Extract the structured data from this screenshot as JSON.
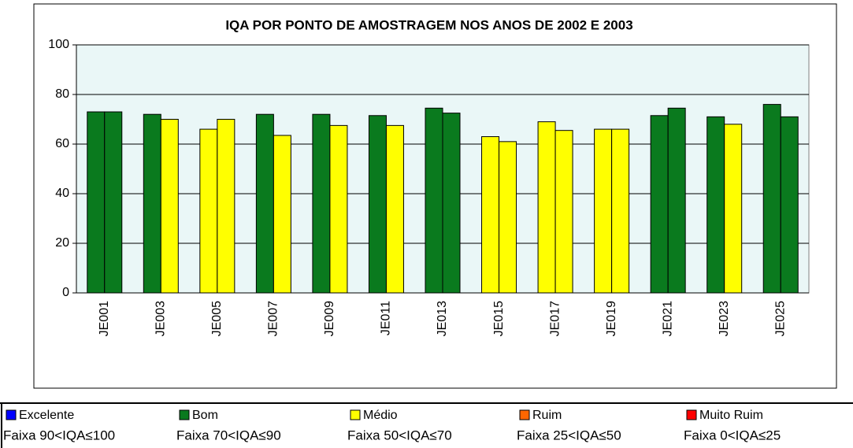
{
  "chart_data": {
    "type": "bar",
    "title": "IQA POR PONTO DE AMOSTRAGEM NOS ANOS DE 2002 E 2003",
    "categories": [
      "JE001",
      "JE003",
      "JE005",
      "JE007",
      "JE009",
      "JE011",
      "JE013",
      "JE015",
      "JE017",
      "JE019",
      "JE021",
      "JE023",
      "JE025"
    ],
    "series": [
      {
        "values": [
          73,
          72,
          66,
          72,
          72,
          71.5,
          74.5,
          63,
          69,
          66,
          71.5,
          71,
          76
        ],
        "colors": [
          "#0a7a1e",
          "#0a7a1e",
          "#ffff00",
          "#0a7a1e",
          "#0a7a1e",
          "#0a7a1e",
          "#0a7a1e",
          "#ffff00",
          "#ffff00",
          "#ffff00",
          "#0a7a1e",
          "#0a7a1e",
          "#0a7a1e"
        ]
      },
      {
        "values": [
          73,
          70,
          70,
          63.5,
          67.5,
          67.5,
          72.5,
          61,
          65.5,
          66,
          74.5,
          68,
          71
        ],
        "colors": [
          "#0a7a1e",
          "#ffff00",
          "#ffff00",
          "#ffff00",
          "#ffff00",
          "#ffff00",
          "#0a7a1e",
          "#ffff00",
          "#ffff00",
          "#ffff00",
          "#0a7a1e",
          "#ffff00",
          "#0a7a1e"
        ]
      }
    ],
    "ylim": [
      0,
      100
    ],
    "yticks": [
      0,
      20,
      40,
      60,
      80,
      100
    ],
    "grid": true,
    "legend": [
      {
        "label": "Excelente",
        "range": "Faixa 90<IQA≤100",
        "color": "#0000ff"
      },
      {
        "label": "Bom",
        "range": "Faixa 70<IQA≤90",
        "color": "#0a7a1e"
      },
      {
        "label": "Médio",
        "range": "Faixa 50<IQA≤70",
        "color": "#ffff00"
      },
      {
        "label": "Ruim",
        "range": "Faixa 25<IQA≤50",
        "color": "#ff6600"
      },
      {
        "label": "Muito Ruim",
        "range": "Faixa 0<IQA≤25",
        "color": "#ff0000"
      }
    ]
  }
}
